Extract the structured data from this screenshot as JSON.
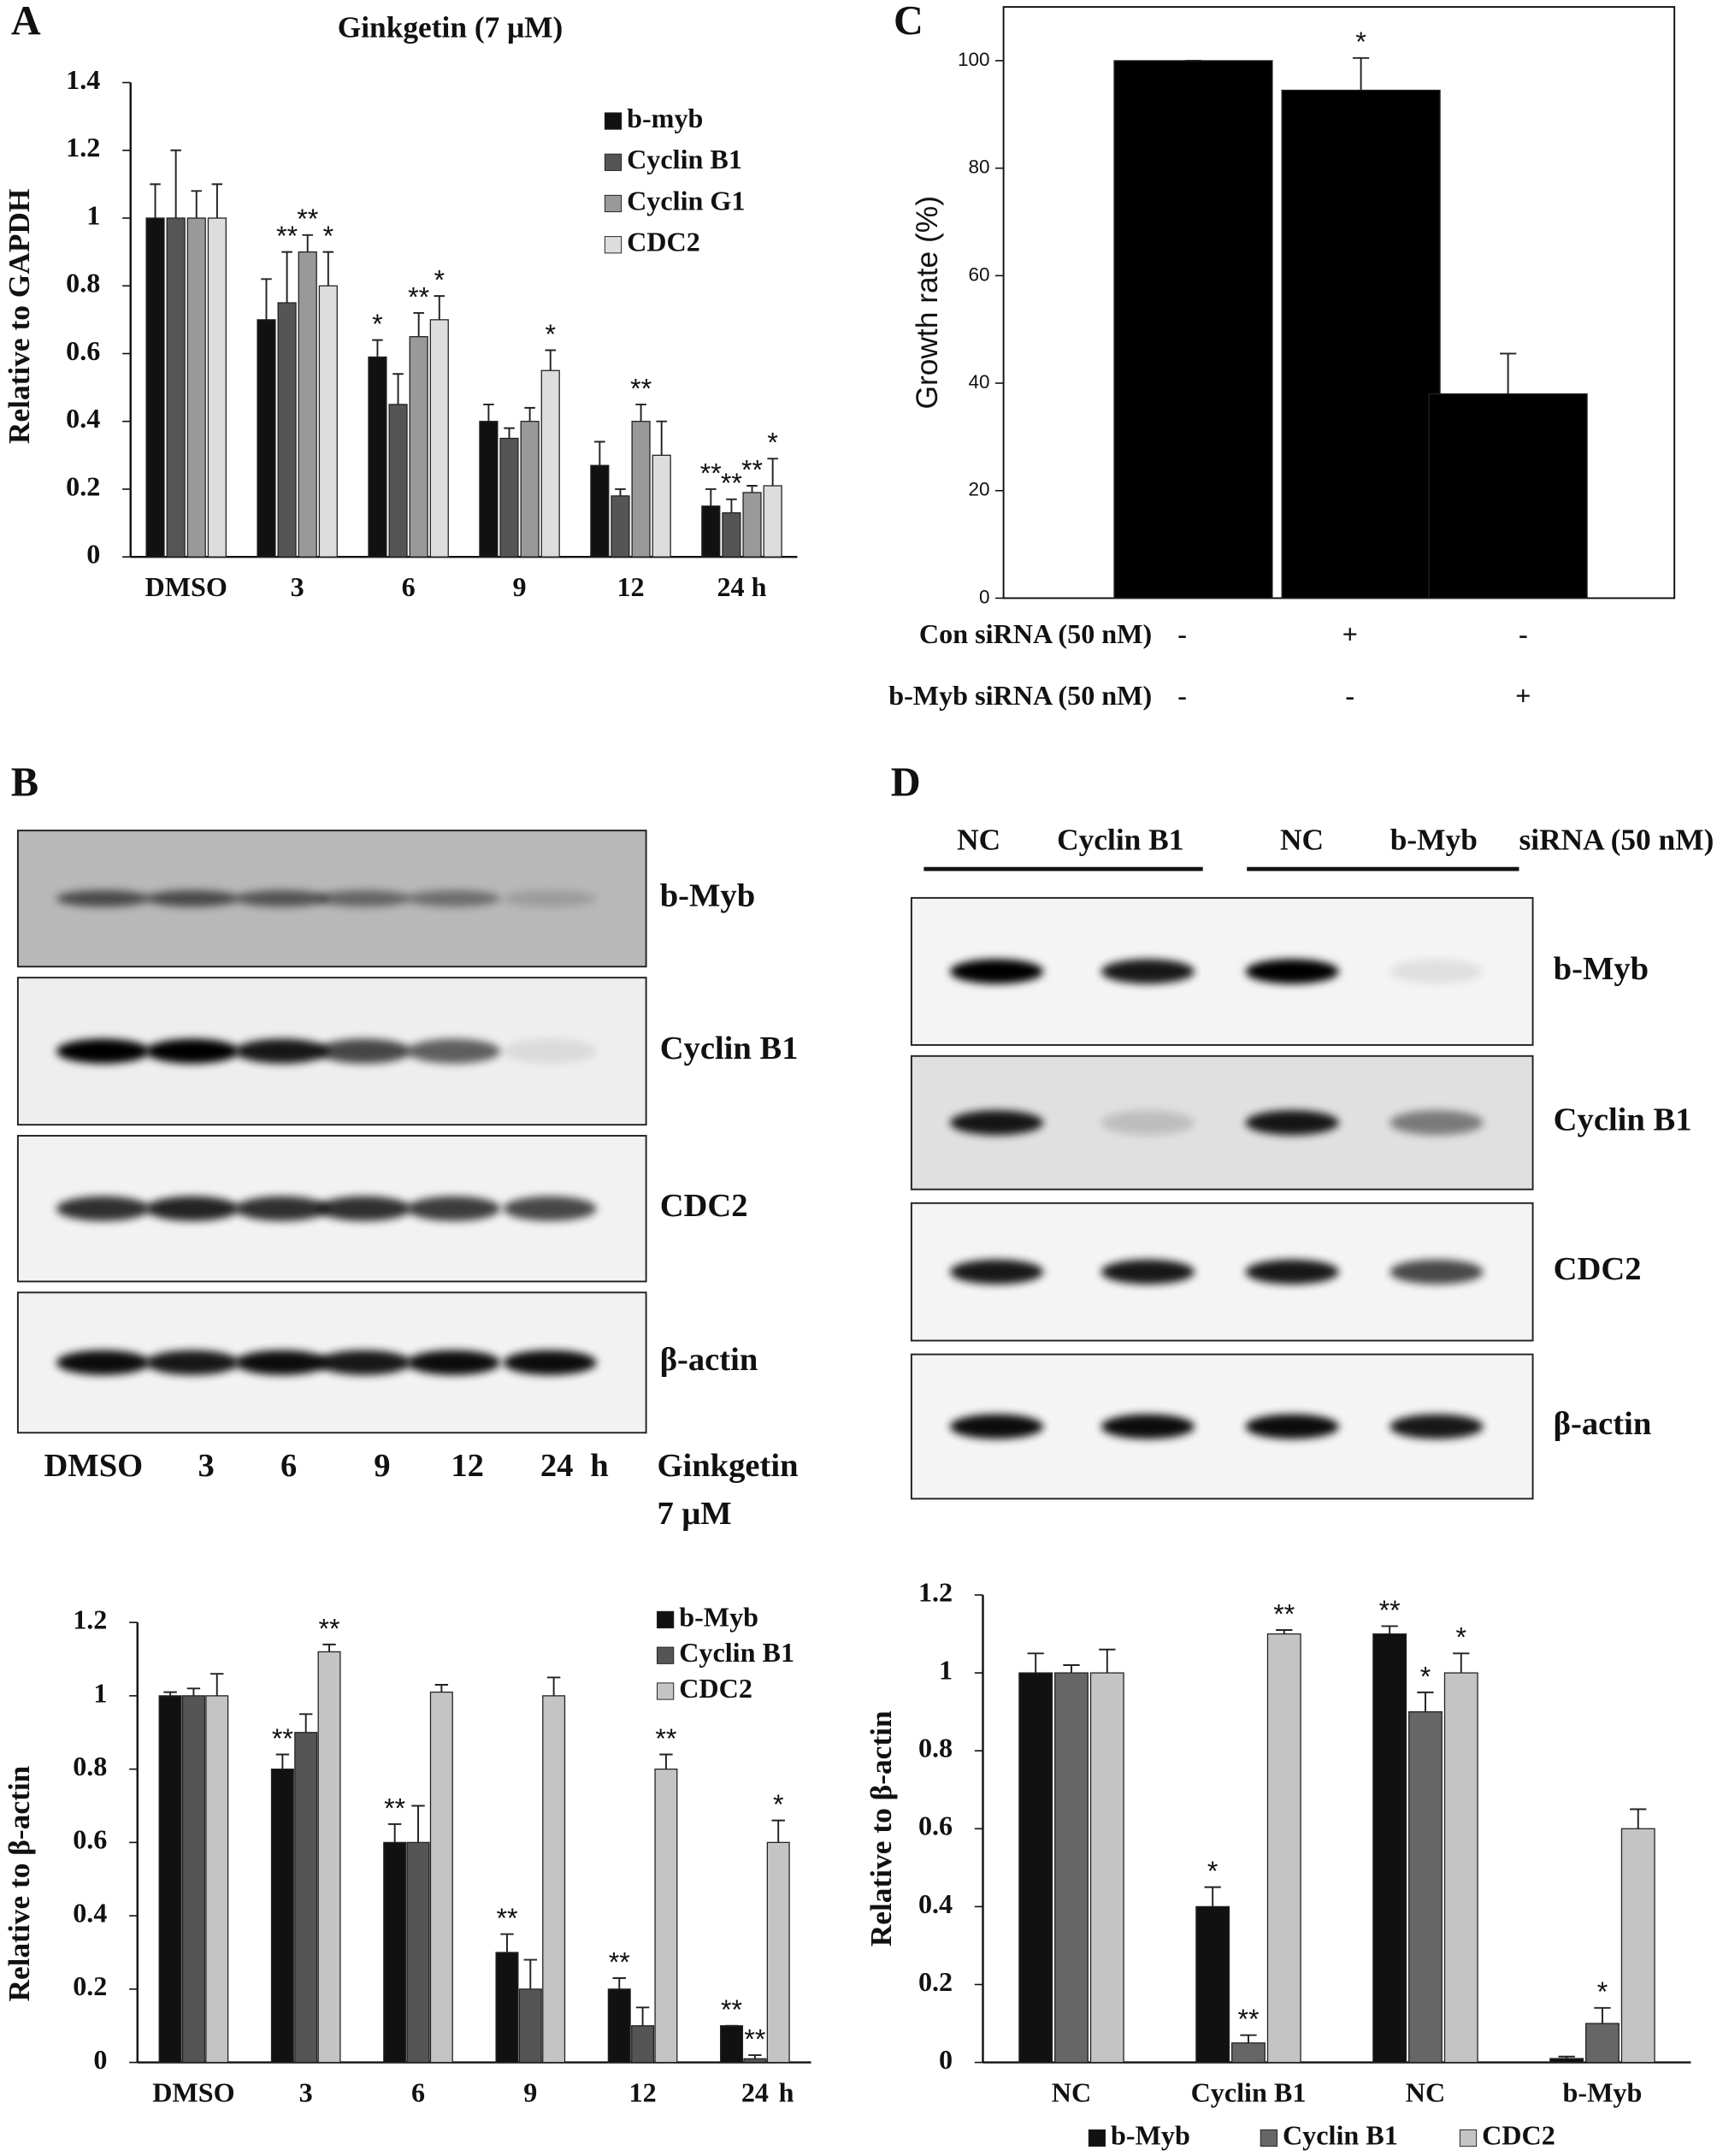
{
  "chart_data": [
    {
      "panel": "A",
      "type": "bar",
      "title": "Ginkgetin (7 μM)",
      "y_label": "Relative to GAPDH",
      "categories": [
        "DMSO",
        "3",
        "6",
        "9",
        "12",
        "24 h"
      ],
      "ylim": [
        0,
        1.4
      ],
      "yticks": [
        0,
        0.2,
        0.4,
        0.6,
        0.8,
        1,
        1.2,
        1.4
      ],
      "series": [
        {
          "name": "b-myb",
          "color": "#111111",
          "values": [
            1,
            0.7,
            0.59,
            0.4,
            0.27,
            0.15
          ],
          "errors": [
            0.1,
            0.12,
            0.05,
            0.05,
            0.07,
            0.05
          ],
          "significance": [
            null,
            null,
            "*",
            null,
            null,
            "**"
          ]
        },
        {
          "name": "Cyclin B1",
          "color": "#555555",
          "values": [
            1,
            0.75,
            0.45,
            0.35,
            0.18,
            0.13
          ],
          "errors": [
            0.2,
            0.15,
            0.09,
            0.03,
            0.02,
            0.04
          ],
          "significance": [
            null,
            "**",
            null,
            null,
            null,
            "**"
          ]
        },
        {
          "name": "Cyclin G1",
          "color": "#999999",
          "values": [
            1,
            0.9,
            0.65,
            0.4,
            0.4,
            0.19
          ],
          "errors": [
            0.08,
            0.05,
            0.07,
            0.04,
            0.05,
            0.02
          ],
          "significance": [
            null,
            "**",
            "**",
            null,
            "**",
            "**"
          ]
        },
        {
          "name": "CDC2",
          "color": "#dddddd",
          "values": [
            1,
            0.8,
            0.7,
            0.55,
            0.3,
            0.21
          ],
          "errors": [
            0.1,
            0.1,
            0.07,
            0.06,
            0.1,
            0.08
          ],
          "significance": [
            null,
            "*",
            "*",
            "*",
            null,
            "*"
          ]
        }
      ]
    },
    {
      "panel": "C",
      "type": "bar",
      "y_label": "Growth rate (%)",
      "ylim": [
        0,
        110
      ],
      "yticks": [
        0,
        20,
        40,
        60,
        80,
        100
      ],
      "color": "#000000",
      "values": [
        100,
        94.5,
        38
      ],
      "errors": [
        0,
        6,
        7.5
      ],
      "significance": [
        null,
        "*",
        null
      ],
      "treatments": [
        {
          "label": "Con siRNA (50 nM)",
          "signs": [
            "-",
            "+",
            "-"
          ]
        },
        {
          "label": "b-Myb siRNA (50 nM)",
          "signs": [
            "-",
            "-",
            "+"
          ]
        }
      ]
    },
    {
      "panel": "B",
      "type": "bar",
      "y_label": "Relative to β-actin",
      "categories": [
        "DMSO",
        "3",
        "6",
        "9",
        "12",
        "24"
      ],
      "x_unit": "h",
      "ylim": [
        0,
        1.2
      ],
      "yticks": [
        0,
        0.2,
        0.4,
        0.6,
        0.8,
        1,
        1.2
      ],
      "series": [
        {
          "name": "b-Myb",
          "color": "#111111",
          "values": [
            1,
            0.8,
            0.6,
            0.3,
            0.2,
            0.1
          ],
          "errors": [
            0.01,
            0.04,
            0.05,
            0.05,
            0.03,
            0
          ],
          "significance": [
            null,
            "**",
            "**",
            "**",
            "**",
            "**"
          ]
        },
        {
          "name": "Cyclin B1",
          "color": "#555555",
          "values": [
            1,
            0.9,
            0.6,
            0.2,
            0.1,
            0.01
          ],
          "errors": [
            0.02,
            0.05,
            0.1,
            0.08,
            0.05,
            0.01
          ],
          "significance": [
            null,
            null,
            null,
            null,
            null,
            "**"
          ]
        },
        {
          "name": "CDC2",
          "color": "#c4c4c4",
          "values": [
            1,
            1.12,
            1.01,
            1,
            0.8,
            0.6
          ],
          "errors": [
            0.06,
            0.02,
            0.02,
            0.05,
            0.04,
            0.06
          ],
          "significance": [
            null,
            "**",
            null,
            null,
            "**",
            "*"
          ]
        }
      ]
    },
    {
      "panel": "D",
      "type": "bar",
      "y_label": "Relative to β-actin",
      "categories": [
        "NC",
        "Cyclin B1",
        "NC",
        "b-Myb"
      ],
      "ylim": [
        0,
        1.2
      ],
      "yticks": [
        0,
        0.2,
        0.4,
        0.6,
        0.8,
        1,
        1.2
      ],
      "series": [
        {
          "name": "b-Myb",
          "color": "#111111",
          "values": [
            1,
            0.4,
            1.1,
            0.01
          ],
          "errors": [
            0.05,
            0.05,
            0.02,
            0.005
          ],
          "significance": [
            null,
            "*",
            "**",
            null
          ]
        },
        {
          "name": "Cyclin B1",
          "color": "#666666",
          "values": [
            1,
            0.05,
            0.9,
            0.1
          ],
          "errors": [
            0.02,
            0.02,
            0.05,
            0.04
          ],
          "significance": [
            null,
            "**",
            "*",
            "*"
          ]
        },
        {
          "name": "CDC2",
          "color": "#c4c4c4",
          "values": [
            1,
            1.1,
            1,
            0.6
          ],
          "errors": [
            0.06,
            0.01,
            0.05,
            0.05
          ],
          "significance": [
            null,
            "**",
            "*",
            null
          ]
        }
      ]
    }
  ],
  "blots": [
    {
      "panel": "B",
      "rows": [
        "b-Myb",
        "Cyclin B1",
        "CDC2",
        "β-actin"
      ],
      "lanes": [
        "DMSO",
        "3",
        "6",
        "9",
        "12",
        "24"
      ],
      "lane_unit": "h",
      "treatment": [
        "Ginkgetin",
        "7 μM"
      ]
    },
    {
      "panel": "D",
      "rows": [
        "b-Myb",
        "Cyclin B1",
        "CDC2",
        "β-actin"
      ],
      "groups": [
        "NC",
        "Cyclin B1",
        "NC",
        "b-Myb"
      ],
      "group_suffix": "siRNA (50 nM)"
    }
  ]
}
